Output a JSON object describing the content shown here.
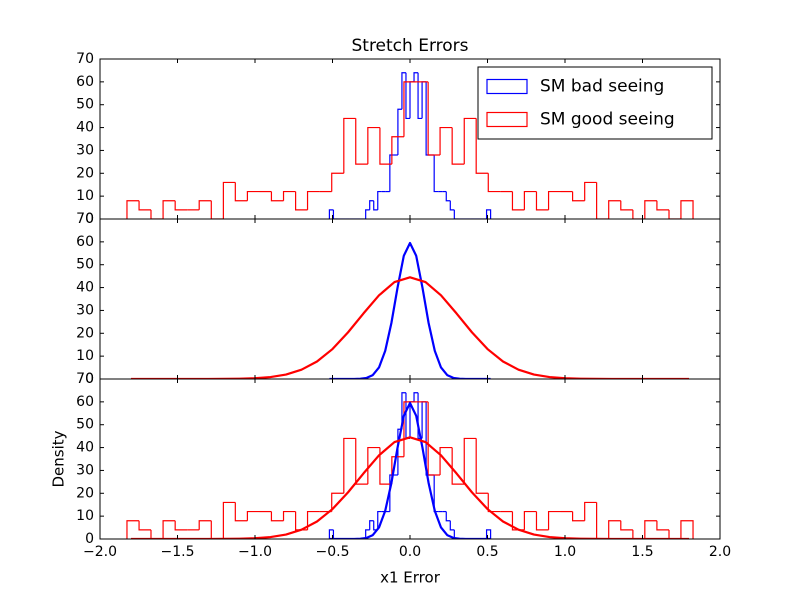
{
  "chart_data": [
    {
      "type": "histogram",
      "title": "Stretch Errors",
      "xlim": [
        -2,
        2
      ],
      "xticks": [
        -2,
        -1.5,
        -1,
        -0.5,
        0,
        0.5,
        1,
        1.5,
        2
      ],
      "ylim": [
        0,
        70
      ],
      "yticks": [
        0,
        10,
        20,
        30,
        40,
        50,
        60,
        70
      ],
      "legend": "upper right",
      "series": [
        {
          "name": "SM bad seeing",
          "color": "#0000ff",
          "bins": [
            -0.52,
            -0.494,
            -0.468,
            -0.442,
            -0.416,
            -0.39,
            -0.364,
            -0.338,
            -0.312,
            -0.286,
            -0.26,
            -0.234,
            -0.208,
            -0.182,
            -0.156,
            -0.13,
            -0.104,
            -0.078,
            -0.052,
            -0.026,
            0,
            0.026,
            0.052,
            0.078,
            0.104,
            0.13,
            0.156,
            0.182,
            0.208,
            0.234,
            0.26,
            0.286,
            0.312,
            0.338,
            0.364,
            0.39,
            0.416,
            0.442,
            0.468,
            0.494,
            0.52
          ],
          "values": [
            4,
            0,
            0,
            0,
            0,
            0,
            0,
            0,
            0,
            4,
            8,
            4,
            12,
            12,
            12,
            28,
            28,
            48,
            64,
            44,
            60,
            64,
            44,
            60,
            28,
            28,
            12,
            12,
            12,
            8,
            4,
            0,
            0,
            0,
            0,
            0,
            0,
            0,
            0,
            4
          ]
        },
        {
          "name": "SM good seeing",
          "color": "#ff0000",
          "bins": [
            -1.826,
            -1.748,
            -1.671,
            -1.593,
            -1.515,
            -1.438,
            -1.36,
            -1.282,
            -1.204,
            -1.127,
            -1.049,
            -0.971,
            -0.894,
            -0.816,
            -0.738,
            -0.661,
            -0.583,
            -0.505,
            -0.427,
            -0.35,
            -0.272,
            -0.194,
            -0.117,
            -0.039,
            0.039,
            0.117,
            0.194,
            0.272,
            0.35,
            0.427,
            0.505,
            0.583,
            0.661,
            0.738,
            0.816,
            0.894,
            0.971,
            1.049,
            1.127,
            1.204,
            1.282,
            1.36,
            1.438,
            1.515,
            1.593,
            1.671,
            1.748,
            1.826
          ],
          "values": [
            8,
            4,
            0,
            8,
            4,
            4,
            8,
            0,
            16,
            8,
            12,
            12,
            8,
            12,
            4,
            12,
            12,
            20,
            44,
            24,
            40,
            24,
            36,
            60,
            60,
            28,
            40,
            24,
            44,
            20,
            12,
            12,
            4,
            12,
            4,
            12,
            12,
            8,
            16,
            0,
            8,
            4,
            0,
            8,
            4,
            0,
            8
          ]
        }
      ]
    },
    {
      "type": "line",
      "xlim": [
        -2,
        2
      ],
      "xticks": [
        -2,
        -1.5,
        -1,
        -0.5,
        0,
        0.5,
        1,
        1.5,
        2
      ],
      "ylim": [
        0,
        70
      ],
      "yticks": [
        0,
        10,
        20,
        30,
        40,
        50,
        60,
        70
      ],
      "series": [
        {
          "color": "#0000ff",
          "x": [
            -0.52,
            -0.48,
            -0.44,
            -0.4,
            -0.36,
            -0.32,
            -0.28,
            -0.24,
            -0.2,
            -0.16,
            -0.12,
            -0.08,
            -0.04,
            0,
            0.04,
            0.08,
            0.12,
            0.16,
            0.2,
            0.24,
            0.28,
            0.32,
            0.36,
            0.4,
            0.44,
            0.48,
            0.52
          ],
          "values": [
            0,
            0,
            0,
            0,
            0.02,
            0.11,
            0.47,
            1.7,
            5.04,
            12.3,
            24.5,
            40.1,
            53.9,
            59.5,
            53.9,
            40.1,
            24.5,
            12.3,
            5.04,
            1.7,
            0.47,
            0.11,
            0.02,
            0,
            0,
            0,
            0
          ]
        },
        {
          "color": "#ff0000",
          "x": [
            -1.8,
            -1.7,
            -1.6,
            -1.5,
            -1.4,
            -1.3,
            -1.2,
            -1.1,
            -1,
            -0.9,
            -0.8,
            -0.7,
            -0.6,
            -0.5,
            -0.4,
            -0.3,
            -0.2,
            -0.1,
            0,
            0.1,
            0.2,
            0.3,
            0.4,
            0.5,
            0.6,
            0.7,
            0.8,
            0.9,
            1,
            1.1,
            1.2,
            1.3,
            1.4,
            1.5,
            1.6,
            1.7,
            1.8
          ],
          "values": [
            0,
            0,
            0,
            0,
            0,
            0.01,
            0.04,
            0.12,
            0.34,
            0.85,
            1.95,
            4.07,
            7.67,
            13.1,
            20.4,
            28.7,
            36.6,
            42.4,
            44.5,
            42.4,
            36.6,
            28.7,
            20.4,
            13.1,
            7.67,
            4.07,
            1.95,
            0.85,
            0.34,
            0.12,
            0.04,
            0.01,
            0,
            0,
            0,
            0,
            0
          ]
        }
      ]
    },
    {
      "type": "overlay",
      "xlabel": "x1 Error",
      "ylabel": "Density",
      "xlim": [
        -2,
        2
      ],
      "xticks": [
        {
          "value": -2,
          "label": "−2.0"
        },
        {
          "value": -1.5,
          "label": "−1.5"
        },
        {
          "value": -1,
          "label": "−1.0"
        },
        {
          "value": -0.5,
          "label": "−0.5"
        },
        {
          "value": 0,
          "label": "0.0"
        },
        {
          "value": 0.5,
          "label": "0.5"
        },
        {
          "value": 1,
          "label": "1.0"
        },
        {
          "value": 1.5,
          "label": "1.5"
        },
        {
          "value": 2,
          "label": "2.0"
        }
      ],
      "ylim": [
        0,
        70
      ],
      "yticks": [
        0,
        10,
        20,
        30,
        40,
        50,
        60,
        70
      ],
      "series": [
        {
          "type": "histogram",
          "color": "#0000ff",
          "bins": [
            -0.52,
            -0.494,
            -0.468,
            -0.442,
            -0.416,
            -0.39,
            -0.364,
            -0.338,
            -0.312,
            -0.286,
            -0.26,
            -0.234,
            -0.208,
            -0.182,
            -0.156,
            -0.13,
            -0.104,
            -0.078,
            -0.052,
            -0.026,
            0,
            0.026,
            0.052,
            0.078,
            0.104,
            0.13,
            0.156,
            0.182,
            0.208,
            0.234,
            0.26,
            0.286,
            0.312,
            0.338,
            0.364,
            0.39,
            0.416,
            0.442,
            0.468,
            0.494,
            0.52
          ],
          "values": [
            4,
            0,
            0,
            0,
            0,
            0,
            0,
            0,
            0,
            4,
            8,
            4,
            12,
            12,
            12,
            28,
            28,
            48,
            64,
            44,
            60,
            64,
            44,
            60,
            28,
            28,
            12,
            12,
            12,
            8,
            4,
            0,
            0,
            0,
            0,
            0,
            0,
            0,
            0,
            4
          ]
        },
        {
          "type": "histogram",
          "color": "#ff0000",
          "bins": [
            -1.826,
            -1.748,
            -1.671,
            -1.593,
            -1.515,
            -1.438,
            -1.36,
            -1.282,
            -1.204,
            -1.127,
            -1.049,
            -0.971,
            -0.894,
            -0.816,
            -0.738,
            -0.661,
            -0.583,
            -0.505,
            -0.427,
            -0.35,
            -0.272,
            -0.194,
            -0.117,
            -0.039,
            0.039,
            0.117,
            0.194,
            0.272,
            0.35,
            0.427,
            0.505,
            0.583,
            0.661,
            0.738,
            0.816,
            0.894,
            0.971,
            1.049,
            1.127,
            1.204,
            1.282,
            1.36,
            1.438,
            1.515,
            1.593,
            1.671,
            1.748,
            1.826
          ],
          "values": [
            8,
            4,
            0,
            8,
            4,
            4,
            8,
            0,
            16,
            8,
            12,
            12,
            8,
            12,
            4,
            12,
            12,
            20,
            44,
            24,
            40,
            24,
            36,
            60,
            60,
            28,
            40,
            24,
            44,
            20,
            12,
            12,
            4,
            12,
            4,
            12,
            12,
            8,
            16,
            0,
            8,
            4,
            0,
            8,
            4,
            0,
            8
          ]
        },
        {
          "type": "line",
          "color": "#0000ff",
          "x": [
            -0.52,
            -0.48,
            -0.44,
            -0.4,
            -0.36,
            -0.32,
            -0.28,
            -0.24,
            -0.2,
            -0.16,
            -0.12,
            -0.08,
            -0.04,
            0,
            0.04,
            0.08,
            0.12,
            0.16,
            0.2,
            0.24,
            0.28,
            0.32,
            0.36,
            0.4,
            0.44,
            0.48,
            0.52
          ],
          "values": [
            0,
            0,
            0,
            0,
            0.02,
            0.11,
            0.47,
            1.7,
            5.04,
            12.3,
            24.5,
            40.1,
            53.9,
            59.5,
            53.9,
            40.1,
            24.5,
            12.3,
            5.04,
            1.7,
            0.47,
            0.11,
            0.02,
            0,
            0,
            0,
            0
          ]
        },
        {
          "type": "line",
          "color": "#ff0000",
          "x": [
            -1.8,
            -1.7,
            -1.6,
            -1.5,
            -1.4,
            -1.3,
            -1.2,
            -1.1,
            -1,
            -0.9,
            -0.8,
            -0.7,
            -0.6,
            -0.5,
            -0.4,
            -0.3,
            -0.2,
            -0.1,
            0,
            0.1,
            0.2,
            0.3,
            0.4,
            0.5,
            0.6,
            0.7,
            0.8,
            0.9,
            1,
            1.1,
            1.2,
            1.3,
            1.4,
            1.5,
            1.6,
            1.7,
            1.8
          ],
          "values": [
            0,
            0,
            0,
            0,
            0,
            0.01,
            0.04,
            0.12,
            0.34,
            0.85,
            1.95,
            4.07,
            7.67,
            13.1,
            20.4,
            28.7,
            36.6,
            42.4,
            44.5,
            42.4,
            36.6,
            28.7,
            20.4,
            13.1,
            7.67,
            4.07,
            1.95,
            0.85,
            0.34,
            0.12,
            0.04,
            0.01,
            0,
            0,
            0,
            0,
            0
          ]
        }
      ]
    }
  ]
}
